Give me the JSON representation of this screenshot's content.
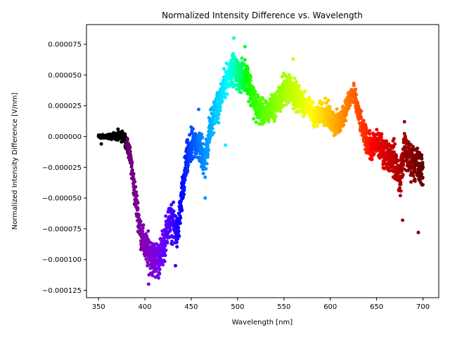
{
  "chart_data": {
    "type": "scatter",
    "title": "Normalized Intensity Difference vs. Wavelength",
    "xlabel": "Wavelength [nm]",
    "ylabel": "Normalized Intensity Difference [V/nm]",
    "xlim": [
      337,
      717
    ],
    "ylim": [
      -0.000131,
      9.1e-05
    ],
    "grid": false,
    "legend": "none",
    "color_encoding": "spectral colour by wavelength (black below ~380 nm, violet → red toward 700 nm)",
    "xticks": [
      350,
      400,
      450,
      500,
      550,
      600,
      650,
      700
    ],
    "xtick_labels": [
      "350",
      "400",
      "450",
      "500",
      "550",
      "600",
      "650",
      "700"
    ],
    "yticks": [
      -0.000125,
      -0.0001,
      -7.5e-05,
      -5e-05,
      -2.5e-05,
      0,
      2.5e-05,
      5e-05,
      7.5e-05
    ],
    "ytick_labels": [
      "−0.000125",
      "−0.000100",
      "−0.000075",
      "−0.000050",
      "−0.000025",
      "0.000000",
      "0.000025",
      "0.000050",
      "0.000075"
    ],
    "trend": {
      "x": [
        350,
        360,
        370,
        378,
        382,
        385,
        388,
        392,
        396,
        400,
        405,
        410,
        415,
        420,
        425,
        430,
        435,
        440,
        445,
        450,
        455,
        460,
        465,
        470,
        475,
        480,
        485,
        490,
        495,
        500,
        505,
        510,
        515,
        520,
        525,
        530,
        535,
        540,
        545,
        550,
        555,
        560,
        565,
        570,
        575,
        580,
        585,
        590,
        595,
        600,
        605,
        610,
        615,
        620,
        625,
        630,
        635,
        640,
        645,
        650,
        655,
        660,
        665,
        670,
        675,
        680,
        685,
        690,
        695,
        700
      ],
      "y": [
        0,
        0,
        0,
        0,
        -1e-05,
        -2e-05,
        -4e-05,
        -6e-05,
        -8e-05,
        -9e-05,
        -9.5e-05,
        -0.0001,
        -0.0001,
        -9e-05,
        -7e-05,
        -7e-05,
        -8e-05,
        -5e-05,
        -2e-05,
        -1e-05,
        -5e-06,
        -1e-05,
        -2e-05,
        5e-06,
        2e-05,
        2.5e-05,
        4e-05,
        5e-05,
        5.5e-05,
        5e-05,
        4.8e-05,
        5e-05,
        3.5e-05,
        2.5e-05,
        2e-05,
        1.8e-05,
        2.2e-05,
        2.5e-05,
        3e-05,
        3.8e-05,
        4e-05,
        3.5e-05,
        3e-05,
        2.8e-05,
        2.5e-05,
        2e-05,
        1.5e-05,
        2e-05,
        2e-05,
        1.5e-05,
        1e-05,
        1e-05,
        2e-05,
        3e-05,
        3.5e-05,
        2e-05,
        5e-06,
        -5e-06,
        -1e-05,
        -5e-06,
        -1e-05,
        -1.5e-05,
        -1.5e-05,
        -2e-05,
        -3.5e-05,
        -1e-05,
        -2e-05,
        -2e-05,
        -2.5e-05,
        -2.5e-05
      ],
      "spread": [
        1e-06,
        1e-06,
        2e-06,
        3e-06,
        4e-06,
        6e-06,
        8e-06,
        8e-06,
        8e-06,
        9e-06,
        1e-05,
        1e-05,
        1e-05,
        1e-05,
        1e-05,
        1e-05,
        1e-05,
        1e-05,
        1e-05,
        1e-05,
        8e-06,
        1e-05,
        1e-05,
        1e-05,
        8e-06,
        8e-06,
        8e-06,
        8e-06,
        8e-06,
        8e-06,
        9e-06,
        9e-06,
        9e-06,
        9e-06,
        7e-06,
        7e-06,
        7e-06,
        7e-06,
        8e-06,
        9e-06,
        9e-06,
        9e-06,
        7e-06,
        7e-06,
        6e-06,
        6e-06,
        6e-06,
        6e-06,
        7e-06,
        7e-06,
        7e-06,
        7e-06,
        6e-06,
        6e-06,
        6e-06,
        6e-06,
        6e-06,
        7e-06,
        7e-06,
        8e-06,
        8e-06,
        8e-06,
        9e-06,
        1e-05,
        1e-05,
        1e-05,
        1e-05,
        1e-05,
        1e-05,
        1e-05
      ]
    },
    "outliers": [
      {
        "x": 353,
        "y": -6e-06
      },
      {
        "x": 371,
        "y": 6e-06
      },
      {
        "x": 433,
        "y": -0.000105
      },
      {
        "x": 404,
        "y": -0.00012
      },
      {
        "x": 496,
        "y": 8e-05
      },
      {
        "x": 508,
        "y": 7.3e-05
      },
      {
        "x": 560,
        "y": 6.3e-05
      },
      {
        "x": 678,
        "y": -6.8e-05
      },
      {
        "x": 695,
        "y": -7.8e-05
      },
      {
        "x": 680,
        "y": 1.2e-05
      },
      {
        "x": 458,
        "y": 2.2e-05
      },
      {
        "x": 465,
        "y": -5e-05
      },
      {
        "x": 487,
        "y": -7e-06
      }
    ],
    "points_per_nm": 9
  }
}
